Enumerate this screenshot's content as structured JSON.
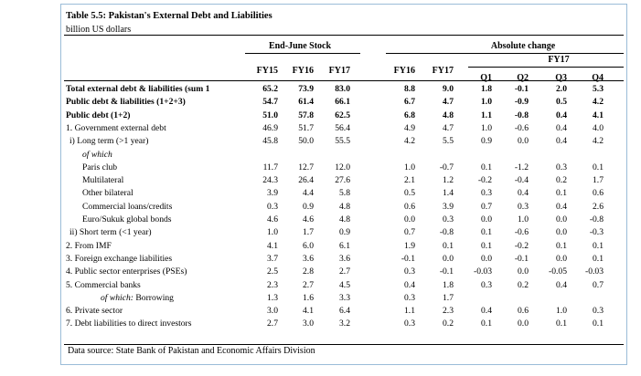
{
  "title": "Table 5.5: Pakistan's External Debt and Liabilities",
  "subtitle": "billion US dollars",
  "headers": {
    "stock_group": "End-June Stock",
    "change_group": "Absolute change",
    "fy17_group": "FY17",
    "cols": [
      "FY15",
      "FY16",
      "FY17",
      "FY16",
      "FY17",
      "Q1",
      "Q2",
      "Q3",
      "Q4"
    ]
  },
  "rows": [
    {
      "label": "Total external debt & liabilities (sum 1",
      "bold": true,
      "indent": 0,
      "values": [
        "65.2",
        "73.9",
        "83.0",
        "8.8",
        "9.0",
        "1.8",
        "-0.1",
        "2.0",
        "5.3"
      ]
    },
    {
      "label": "Public debt & liabilities (1+2+3)",
      "bold": true,
      "indent": 0,
      "values": [
        "54.7",
        "61.4",
        "66.1",
        "6.7",
        "4.7",
        "1.0",
        "-0.9",
        "0.5",
        "4.2"
      ]
    },
    {
      "label": "Public debt (1+2)",
      "bold": true,
      "indent": 0,
      "values": [
        "51.0",
        "57.8",
        "62.5",
        "6.8",
        "4.8",
        "1.1",
        "-0.8",
        "0.4",
        "4.1"
      ]
    },
    {
      "label": "1. Government external debt",
      "bold": false,
      "indent": 0,
      "values": [
        "46.9",
        "51.7",
        "56.4",
        "4.9",
        "4.7",
        "1.0",
        "-0.6",
        "0.4",
        "4.0"
      ]
    },
    {
      "label": "i) Long term (>1 year)",
      "bold": false,
      "indent": 1,
      "values": [
        "45.8",
        "50.0",
        "55.5",
        "4.2",
        "5.5",
        "0.9",
        "0.0",
        "0.4",
        "4.2"
      ]
    },
    {
      "label": "of which",
      "bold": false,
      "indent": 2,
      "italic": true,
      "values": [
        "",
        "",
        "",
        "",
        "",
        "",
        "",
        "",
        ""
      ]
    },
    {
      "label": "Paris club",
      "bold": false,
      "indent": 3,
      "values": [
        "11.7",
        "12.7",
        "12.0",
        "1.0",
        "-0.7",
        "0.1",
        "-1.2",
        "0.3",
        "0.1"
      ]
    },
    {
      "label": "Multilateral",
      "bold": false,
      "indent": 3,
      "values": [
        "24.3",
        "26.4",
        "27.6",
        "2.1",
        "1.2",
        "-0.2",
        "-0.4",
        "0.2",
        "1.7"
      ]
    },
    {
      "label": "Other bilateral",
      "bold": false,
      "indent": 3,
      "values": [
        "3.9",
        "4.4",
        "5.8",
        "0.5",
        "1.4",
        "0.3",
        "0.4",
        "0.1",
        "0.6"
      ]
    },
    {
      "label": "Commercial loans/credits",
      "bold": false,
      "indent": 3,
      "values": [
        "0.3",
        "0.9",
        "4.8",
        "0.6",
        "3.9",
        "0.7",
        "0.3",
        "0.4",
        "2.6"
      ]
    },
    {
      "label": "Euro/Sukuk global bonds",
      "bold": false,
      "indent": 3,
      "values": [
        "4.6",
        "4.6",
        "4.8",
        "0.0",
        "0.3",
        "0.0",
        "1.0",
        "0.0",
        "-0.8"
      ]
    },
    {
      "label": "ii) Short term (<1 year)",
      "bold": false,
      "indent": 1,
      "values": [
        "1.0",
        "1.7",
        "0.9",
        "0.7",
        "-0.8",
        "0.1",
        "-0.6",
        "0.0",
        "-0.3"
      ]
    },
    {
      "label": "2. From IMF",
      "bold": false,
      "indent": 0,
      "values": [
        "4.1",
        "6.0",
        "6.1",
        "1.9",
        "0.1",
        "0.1",
        "-0.2",
        "0.1",
        "0.1"
      ]
    },
    {
      "label": "3. Foreign exchange liabilities",
      "bold": false,
      "indent": 0,
      "values": [
        "3.7",
        "3.6",
        "3.6",
        "-0.1",
        "0.0",
        "0.0",
        "-0.1",
        "0.0",
        "0.1"
      ]
    },
    {
      "label": "4. Public sector enterprises (PSEs)",
      "bold": false,
      "indent": 0,
      "values": [
        "2.5",
        "2.8",
        "2.7",
        "0.3",
        "-0.1",
        "-0.03",
        "0.0",
        "-0.05",
        "-0.03"
      ]
    },
    {
      "label": "5. Commercial banks",
      "bold": false,
      "indent": 0,
      "values": [
        "2.3",
        "2.7",
        "4.5",
        "0.4",
        "1.8",
        "0.3",
        "0.2",
        "0.4",
        "0.7"
      ]
    },
    {
      "label": "of which: Borrowing",
      "bold": false,
      "indent": 4,
      "italicPrefix": "of which:",
      "values": [
        "1.3",
        "1.6",
        "3.3",
        "0.3",
        "1.7",
        "",
        "",
        "",
        ""
      ]
    },
    {
      "label": "6. Private sector",
      "bold": false,
      "indent": 0,
      "values": [
        "3.0",
        "4.1",
        "6.4",
        "1.1",
        "2.3",
        "0.4",
        "0.6",
        "1.0",
        "0.3"
      ]
    },
    {
      "label": "7. Debt liabilities to direct investors",
      "bold": false,
      "indent": 0,
      "values": [
        "2.7",
        "3.0",
        "3.2",
        "0.3",
        "0.2",
        "0.1",
        "0.0",
        "0.1",
        "0.1"
      ]
    }
  ],
  "source": "Data source: State Bank of Pakistan and Economic Affairs Division"
}
